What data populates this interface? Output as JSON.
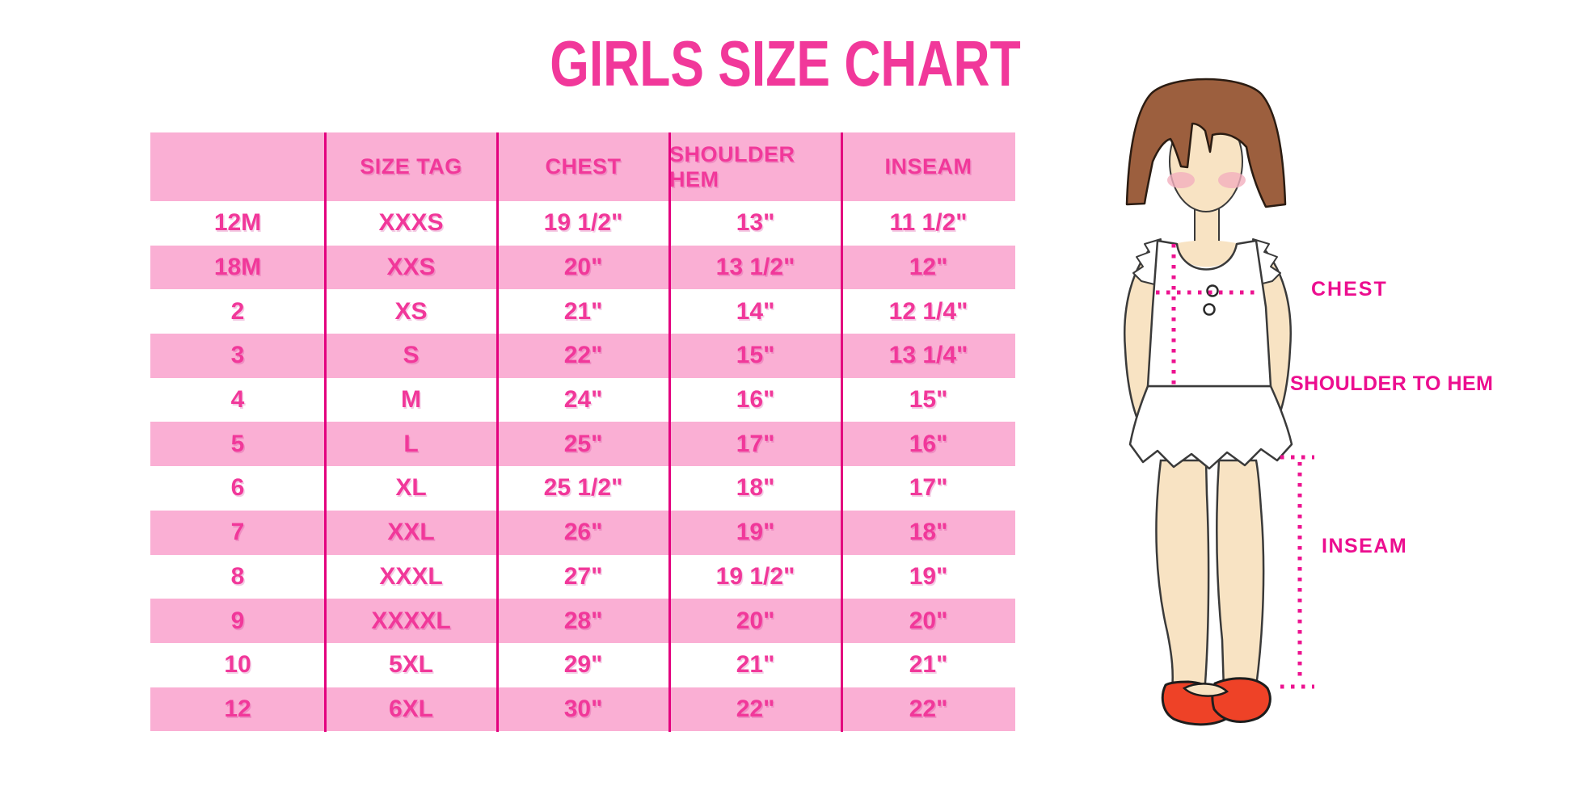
{
  "title": "GIRLS SIZE CHART",
  "table": {
    "headers": [
      "",
      "SIZE TAG",
      "CHEST",
      "SHOULDER HEM",
      "INSEAM"
    ],
    "rows": [
      [
        "12M",
        "XXXS",
        "19 1/2\"",
        "13\"",
        "11 1/2\""
      ],
      [
        "18M",
        "XXS",
        "20\"",
        "13 1/2\"",
        "12\""
      ],
      [
        "2",
        "XS",
        "21\"",
        "14\"",
        "12 1/4\""
      ],
      [
        "3",
        "S",
        "22\"",
        "15\"",
        "13 1/4\""
      ],
      [
        "4",
        "M",
        "24\"",
        "16\"",
        "15\""
      ],
      [
        "5",
        "L",
        "25\"",
        "17\"",
        "16\""
      ],
      [
        "6",
        "XL",
        "25 1/2\"",
        "18\"",
        "17\""
      ],
      [
        "7",
        "XXL",
        "26\"",
        "19\"",
        "18\""
      ],
      [
        "8",
        "XXXL",
        "27\"",
        "19 1/2\"",
        "19\""
      ],
      [
        "9",
        "XXXXL",
        "28\"",
        "20\"",
        "20\""
      ],
      [
        "10",
        "5XL",
        "29\"",
        "21\"",
        "21\""
      ],
      [
        "12",
        "6XL",
        "30\"",
        "22\"",
        "22\""
      ]
    ]
  },
  "diagram": {
    "labels": {
      "chest": "CHEST",
      "shoulder_to_hem": "SHOULDER TO HEM",
      "inseam": "INSEAM"
    }
  },
  "colors": {
    "band_pink": "#FAAFD4",
    "divider_magenta": "#E3017E",
    "text_pink": "#F1389A",
    "label_magenta": "#EC0E8F",
    "hair_brown": "#9C5F3E",
    "skin": "#F8E3C3",
    "shoe_red": "#EE4227",
    "blush": "#F2AFBE"
  }
}
